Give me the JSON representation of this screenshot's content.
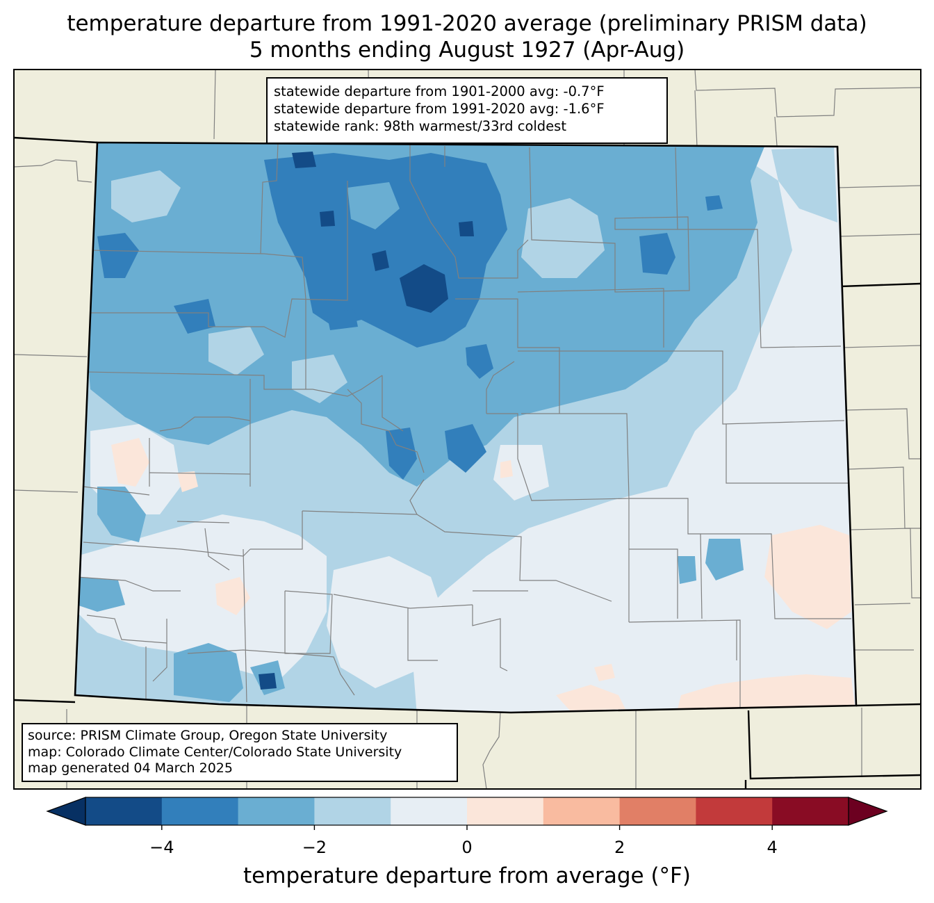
{
  "title": {
    "line1": "temperature departure from 1991-2020 average (preliminary PRISM data)",
    "line2": "5 months ending August 1927 (Apr-Aug)"
  },
  "stats": {
    "line1": "statewide departure from 1901-2000 avg: -0.7°F",
    "line2": "statewide departure from 1991-2020 avg: -1.6°F",
    "line3": "statewide rank: 98th warmest/33rd coldest"
  },
  "credits": {
    "source": "source: PRISM Climate Group, Oregon State University",
    "map": "map: Colorado Climate Center/Colorado State University",
    "generated": "map generated 04 March 2025"
  },
  "colorbar": {
    "label": "temperature departure from average (°F)",
    "ticks": [
      "−4",
      "−2",
      "0",
      "2",
      "4"
    ],
    "tick_values": [
      -4,
      -2,
      0,
      2,
      4
    ],
    "levels": [
      -5,
      -4,
      -3,
      -2,
      -1,
      0,
      1,
      2,
      3,
      4,
      5
    ],
    "colors": [
      "#134b87",
      "#327fbb",
      "#6aaed2",
      "#b1d4e6",
      "#e7eef4",
      "#fbe6da",
      "#f9bba0",
      "#e17f66",
      "#c23a3b",
      "#890c24"
    ],
    "under_color": "#073063",
    "over_color": "#6c0020"
  },
  "map_colors": {
    "background": "#efeedd",
    "ocean_border": "#000000",
    "county_line": "#808080"
  },
  "chart_data": {
    "type": "heatmap",
    "title": "temperature departure from 1991-2020 average (preliminary PRISM data) — 5 months ending August 1927 (Apr-Aug)",
    "region": "Colorado",
    "units": "°F",
    "statewide_departure_1901_2000": -0.7,
    "statewide_departure_1991_2020": -1.6,
    "rank_warmest": 98,
    "rank_coldest": 33,
    "range": [
      -5,
      5
    ]
  }
}
